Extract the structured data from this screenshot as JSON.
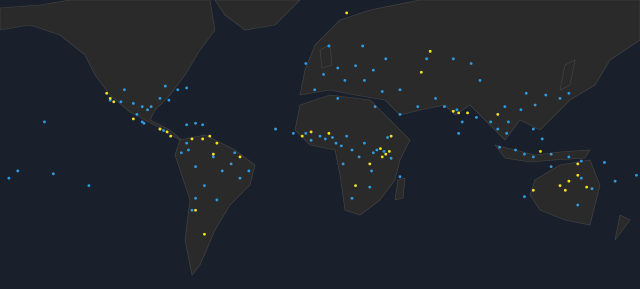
{
  "map": {
    "layers": [
      {
        "color": "#2f9be0",
        "points": [
          [
            -118,
            34
          ],
          [
            -112,
            33
          ],
          [
            -105,
            32
          ],
          [
            -100,
            30
          ],
          [
            -97,
            28
          ],
          [
            -95,
            30
          ],
          [
            -90,
            35
          ],
          [
            -85,
            34
          ],
          [
            -80,
            40
          ],
          [
            -75,
            41
          ],
          [
            -87,
            42
          ],
          [
            -100,
            20
          ],
          [
            -99,
            19
          ],
          [
            -103,
            25
          ],
          [
            -110,
            40
          ],
          [
            -90,
            15
          ],
          [
            -88,
            14
          ],
          [
            -75,
            18
          ],
          [
            -70,
            19
          ],
          [
            -66,
            18
          ],
          [
            -75,
            5
          ],
          [
            -74,
            0
          ],
          [
            -78,
            -2
          ],
          [
            -70,
            -12
          ],
          [
            -60,
            -5
          ],
          [
            -50,
            -10
          ],
          [
            -45,
            -20
          ],
          [
            -40,
            -15
          ],
          [
            -58,
            -34
          ],
          [
            -65,
            -25
          ],
          [
            -70,
            -33
          ],
          [
            -72,
            -40
          ],
          [
            -55,
            -15
          ],
          [
            -48,
            -2
          ],
          [
            -3,
            40
          ],
          [
            2,
            48
          ],
          [
            10,
            51
          ],
          [
            14,
            45
          ],
          [
            20,
            52
          ],
          [
            25,
            45
          ],
          [
            30,
            50
          ],
          [
            37,
            55
          ],
          [
            45,
            40
          ],
          [
            35,
            39
          ],
          [
            5,
            60
          ],
          [
            -8,
            53
          ],
          [
            24,
            60
          ],
          [
            -15,
            12
          ],
          [
            -8,
            12
          ],
          [
            -5,
            7
          ],
          [
            0,
            10
          ],
          [
            3,
            8
          ],
          [
            7,
            9
          ],
          [
            9,
            5
          ],
          [
            12,
            3
          ],
          [
            15,
            10
          ],
          [
            18,
            0
          ],
          [
            22,
            -5
          ],
          [
            25,
            5
          ],
          [
            30,
            -2
          ],
          [
            32,
            0
          ],
          [
            36,
            -1
          ],
          [
            38,
            9
          ],
          [
            29,
            -15
          ],
          [
            28,
            -26
          ],
          [
            18,
            -33
          ],
          [
            45,
            -19
          ],
          [
            13,
            -10
          ],
          [
            40,
            -6
          ],
          [
            31,
            30
          ],
          [
            10,
            35
          ],
          [
            45,
            25
          ],
          [
            55,
            30
          ],
          [
            65,
            35
          ],
          [
            70,
            30
          ],
          [
            77,
            28
          ],
          [
            80,
            20
          ],
          [
            78,
            12
          ],
          [
            88,
            23
          ],
          [
            96,
            20
          ],
          [
            100,
            15
          ],
          [
            105,
            12
          ],
          [
            106,
            20
          ],
          [
            104,
            30
          ],
          [
            113,
            28
          ],
          [
            116,
            38
          ],
          [
            121,
            31
          ],
          [
            127,
            37
          ],
          [
            135,
            35
          ],
          [
            140,
            38
          ],
          [
            120,
            15
          ],
          [
            125,
            8
          ],
          [
            110,
            0
          ],
          [
            115,
            -3
          ],
          [
            120,
            -5
          ],
          [
            101,
            2
          ],
          [
            130,
            -3
          ],
          [
            140,
            -5
          ],
          [
            147,
            -8
          ],
          [
            75,
            55
          ],
          [
            85,
            53
          ],
          [
            60,
            55
          ],
          [
            90,
            45
          ],
          [
            153,
            -27
          ],
          [
            145,
            -37
          ],
          [
            115,
            -32
          ],
          [
            147,
            -20
          ],
          [
            130,
            -12
          ],
          [
            166,
            -22
          ],
          [
            178,
            -18
          ],
          [
            160,
            -9
          ],
          [
            -155,
            20
          ],
          [
            -175,
            -20
          ],
          [
            -130,
            -25
          ],
          [
            -25,
            15
          ],
          [
            -170,
            -15
          ],
          [
            -150,
            -17
          ]
        ]
      },
      {
        "color": "#f2e21f",
        "points": [
          [
            -118,
            35
          ],
          [
            -116,
            33
          ],
          [
            -120,
            38
          ],
          [
            -105,
            22
          ],
          [
            -90,
            15
          ],
          [
            -86,
            13
          ],
          [
            -84,
            10
          ],
          [
            -72,
            8
          ],
          [
            -66,
            8
          ],
          [
            -62,
            10
          ],
          [
            -58,
            5
          ],
          [
            -60,
            -3
          ],
          [
            -45,
            -5
          ],
          [
            -65,
            -52
          ],
          [
            -70,
            -40
          ],
          [
            37,
            -3
          ],
          [
            35,
            -5
          ],
          [
            34,
            1
          ],
          [
            39,
            -1
          ],
          [
            40,
            10
          ],
          [
            -5,
            13
          ],
          [
            5,
            12
          ],
          [
            -10,
            10
          ],
          [
            20,
            -25
          ],
          [
            28,
            -10
          ],
          [
            75,
            27
          ],
          [
            78,
            26
          ],
          [
            83,
            26
          ],
          [
            100,
            25
          ],
          [
            140,
            -22
          ],
          [
            135,
            -25
          ],
          [
            138,
            -28
          ],
          [
            145,
            -18
          ],
          [
            150,
            -26
          ],
          [
            120,
            -28
          ],
          [
            145,
            -10
          ],
          [
            124,
            -1
          ],
          [
            15,
            70
          ],
          [
            62,
            58
          ],
          [
            57,
            49
          ]
        ]
      }
    ]
  }
}
